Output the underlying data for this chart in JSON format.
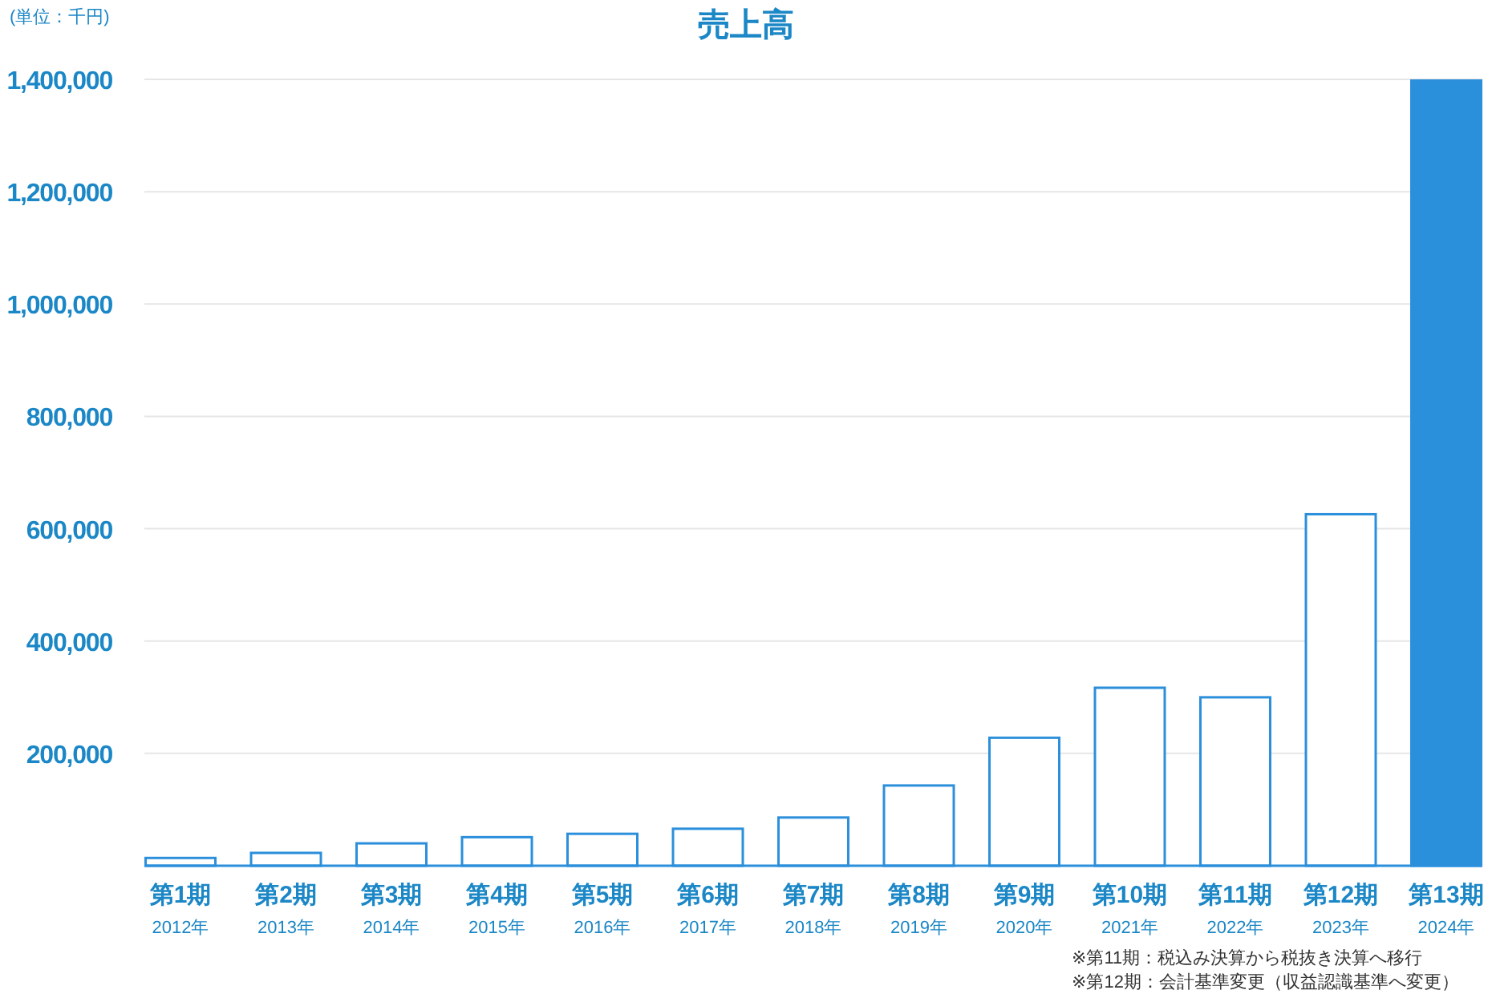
{
  "chart_data": {
    "type": "bar",
    "title": "売上高",
    "ylabel": "(単位：千円)",
    "categories": [
      "第1期\n2012年",
      "第2期\n2013年",
      "第3期\n2014年",
      "第4期\n2015年",
      "第5期\n2016年",
      "第6期\n2017年",
      "第7期\n2018年",
      "第8期\n2019年",
      "第9期\n2020年",
      "第10期\n2021年",
      "第11期\n2022年",
      "第12期\n2023年",
      "第13期\n2024年"
    ],
    "values": [
      16000,
      25000,
      42000,
      53000,
      59000,
      68000,
      88000,
      145000,
      230000,
      319000,
      302000,
      628000,
      1400000
    ],
    "color": "#2b8fdb",
    "colors": [
      "#ffffff",
      "#ffffff",
      "#ffffff",
      "#ffffff",
      "#ffffff",
      "#ffffff",
      "#ffffff",
      "#ffffff",
      "#ffffff",
      "#ffffff",
      "#ffffff",
      "#ffffff",
      "#2b90dc"
    ],
    "ylim": [
      0,
      1400000
    ],
    "yticks": [
      {
        "value": 200000,
        "label": "200,000"
      },
      {
        "value": 400000,
        "label": "400,000"
      },
      {
        "value": 600000,
        "label": "600,000"
      },
      {
        "value": 800000,
        "label": "800,000"
      },
      {
        "value": 1000000,
        "label": "1,000,000"
      },
      {
        "value": 1200000,
        "label": "1,200,000"
      },
      {
        "value": 1400000,
        "label": "1,400,000"
      }
    ],
    "grid": "y",
    "annotations": [
      "※第11期：税込み決算から税抜き決算へ移行",
      "※第12期：会計基準変更（収益認識基準へ変更）"
    ]
  }
}
